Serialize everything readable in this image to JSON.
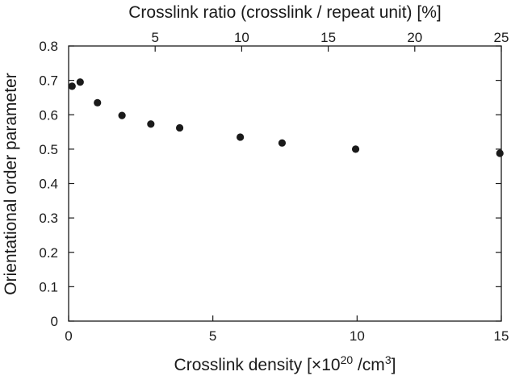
{
  "chart_data": {
    "type": "scatter",
    "title": "",
    "xlabel": "Crosslink density [×10^20 /cm^3]",
    "xlabel_parts": {
      "prefix": "Crosslink density [×10",
      "exp1": "20",
      "middle": " /cm",
      "exp2": "3",
      "suffix": "]"
    },
    "ylabel": "Orientational order parameter",
    "x2label": "Crosslink ratio (crosslink / repeat unit) [%]",
    "xlim": [
      0,
      15
    ],
    "ylim": [
      0,
      0.8
    ],
    "x2lim": [
      0,
      25
    ],
    "x_ticks": [
      0,
      5,
      10,
      15
    ],
    "x_tick_labels": [
      "0",
      "5",
      "10",
      "15"
    ],
    "y_ticks": [
      0,
      0.1,
      0.2,
      0.3,
      0.4,
      0.5,
      0.6,
      0.7,
      0.8
    ],
    "y_tick_labels": [
      "0",
      "0.1",
      "0.2",
      "0.3",
      "0.4",
      "0.5",
      "0.6",
      "0.7",
      "0.8"
    ],
    "x2_ticks": [
      5,
      10,
      15,
      20,
      25
    ],
    "x2_tick_labels": [
      "5",
      "10",
      "15",
      "20",
      "25"
    ],
    "grid": false,
    "legend": "none",
    "marker_color": "#1a1a1a",
    "series": [
      {
        "x": [
          0.12,
          0.4,
          1.0,
          1.85,
          2.85,
          3.85,
          5.95,
          7.4,
          9.95,
          14.95
        ],
        "y": [
          0.683,
          0.695,
          0.635,
          0.598,
          0.573,
          0.562,
          0.535,
          0.518,
          0.5,
          0.488
        ]
      }
    ]
  }
}
